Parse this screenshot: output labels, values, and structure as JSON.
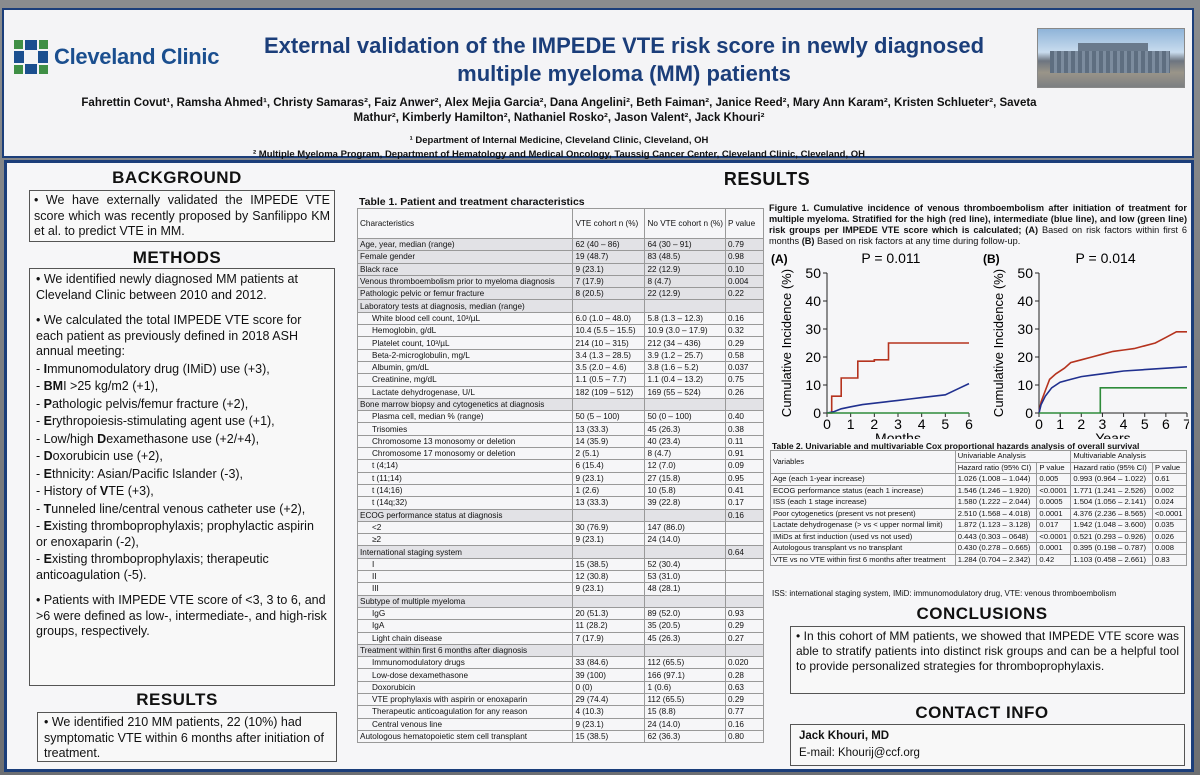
{
  "header": {
    "logo_text": "Cleveland Clinic",
    "title": "External validation of the IMPEDE VTE risk score in newly diagnosed multiple myeloma (MM) patients",
    "authors": "Fahrettin Covut¹, Ramsha Ahmed¹, Christy Samaras², Faiz Anwer², Alex Mejia Garcia², Dana Angelini², Beth Faiman², Janice Reed², Mary Ann Karam², Kristen Schlueter², Saveta Mathur², Kimberly Hamilton², Nathaniel Rosko², Jason Valent², Jack Khouri²",
    "affiliation1": "¹ Department of Internal Medicine, Cleveland Clinic, Cleveland, OH",
    "affiliation2": "² Multiple Myeloma Program, Department of Hematology and Medical Oncology, Taussig Cancer Center, Cleveland Clinic, Cleveland, OH"
  },
  "background": {
    "heading": "BACKGROUND",
    "text": "• We have externally validated the IMPEDE VTE score which was recently proposed by Sanfilippo KM et al. to predict VTE in MM."
  },
  "methods": {
    "heading": "METHODS",
    "p1": "• We identified newly diagnosed MM patients at Cleveland Clinic between 2010 and 2012.",
    "p2": "• We calculated the total IMPEDE VTE score for each patient as previously defined in 2018 ASH annual meeting:",
    "items": [
      {
        "l": "I",
        "t": "mmunomodulatory drug (IMiD) use (+3),"
      },
      {
        "l": "BM",
        "t": "I >25 kg/m2 (+1),"
      },
      {
        "l": "P",
        "t": "athologic pelvis/femur fracture (+2),"
      },
      {
        "l": "E",
        "t": "rythropoiesis-stimulating agent use (+1),"
      },
      {
        "l": "",
        "t": "Low/high ",
        "l2": "D",
        "t2": "examethasone use (+2/+4),"
      },
      {
        "l": "D",
        "t": "oxorubicin use (+2),"
      },
      {
        "l": "E",
        "t": "thnicity: Asian/Pacific Islander (-3),"
      },
      {
        "l": "",
        "t": "History of ",
        "l2": "V",
        "t2": "TE (+3),"
      },
      {
        "l": "T",
        "t": "unneled line/central venous catheter use (+2),"
      },
      {
        "l": "E",
        "t": "xisting thromboprophylaxis; prophylactic aspirin or enoxaparin (-2),"
      },
      {
        "l": "E",
        "t": "xisting thromboprophylaxis; therapeutic anticoagulation (-5)."
      }
    ],
    "p3": "• Patients with IMPEDE VTE score of <3, 3 to 6, and >6 were defined as low-, intermediate-, and high-risk groups, respectively."
  },
  "results_left": {
    "heading": "RESULTS",
    "text": "• We identified 210 MM patients, 22 (10%) had symptomatic VTE within 6 months after initiation of treatment."
  },
  "results_heading": "RESULTS",
  "table1": {
    "title": "Table 1. Patient and treatment characteristics",
    "headers": [
      "Characteristics",
      "VTE cohort n  (%)",
      "No VTE cohort n  (%)",
      "P value"
    ],
    "rows": [
      {
        "c": "Age, year, median (range)",
        "a": "62 (40 – 86)",
        "b": "64 (30 – 91)",
        "p": "0.79",
        "s": true
      },
      {
        "c": "Female gender",
        "a": "19 (48.7)",
        "b": "83 (48.5)",
        "p": "0.98",
        "s": true
      },
      {
        "c": "Black race",
        "a": "9 (23.1)",
        "b": "22 (12.9)",
        "p": "0.10",
        "s": true
      },
      {
        "c": "Venous thromboembolism prior to myeloma diagnosis",
        "a": "7 (17.9)",
        "b": "8 (4.7)",
        "p": "0.004",
        "s": true
      },
      {
        "c": "Pathologic pelvic or femur fracture",
        "a": "8 (20.5)",
        "b": "22 (12.9)",
        "p": "0.22",
        "s": true
      },
      {
        "c": "Laboratory tests at diagnosis, median (range)",
        "a": "",
        "b": "",
        "p": ""
      },
      {
        "c": "White blood cell count, 10³/µL",
        "a": "6.0 (1.0 – 48.0)",
        "b": "5.8 (1.3 – 12.3)",
        "p": "0.16",
        "i": true
      },
      {
        "c": "Hemoglobin, g/dL",
        "a": "10.4 (5.5 – 15.5)",
        "b": "10.9 (3.0 – 17.9)",
        "p": "0.32",
        "i": true
      },
      {
        "c": "Platelet count, 10³/µL",
        "a": "214 (10 – 315)",
        "b": "212 (34 – 436)",
        "p": "0.29",
        "i": true
      },
      {
        "c": "Beta-2-microglobulin, mg/L",
        "a": "3.4 (1.3 – 28.5)",
        "b": "3.9 (1.2 – 25.7)",
        "p": "0.58",
        "i": true
      },
      {
        "c": "Albumin, gm/dL",
        "a": "3.5 (2.0 – 4.6)",
        "b": "3.8 (1.6 – 5.2)",
        "p": "0.037",
        "i": true
      },
      {
        "c": "Creatinine, mg/dL",
        "a": "1.1 (0.5 – 7.7)",
        "b": "1.1 (0.4 – 13.2)",
        "p": "0.75",
        "i": true
      },
      {
        "c": "Lactate dehydrogenase, U/L",
        "a": "182 (109 – 512)",
        "b": "169 (55 – 524)",
        "p": "0.26",
        "i": true
      },
      {
        "c": "Bone marrow biopsy and cytogenetics at diagnosis",
        "a": "",
        "b": "",
        "p": ""
      },
      {
        "c": "Plasma cell, median % (range)",
        "a": "50 (5 – 100)",
        "b": "50 (0 – 100)",
        "p": "0.40",
        "i": true
      },
      {
        "c": "Trisomies",
        "a": "13 (33.3)",
        "b": "45 (26.3)",
        "p": "0.38",
        "i": true
      },
      {
        "c": "Chromosome 13 monosomy or deletion",
        "a": "14 (35.9)",
        "b": "40 (23.4)",
        "p": "0.11",
        "i": true
      },
      {
        "c": "Chromosome 17 monosomy or deletion",
        "a": "2 (5.1)",
        "b": "8 (4.7)",
        "p": "0.91",
        "i": true
      },
      {
        "c": "t (4;14)",
        "a": "6 (15.4)",
        "b": "12 (7.0)",
        "p": "0.09",
        "i": true
      },
      {
        "c": "t (11;14)",
        "a": "9 (23.1)",
        "b": "27 (15.8)",
        "p": "0.95",
        "i": true
      },
      {
        "c": "t (14;16)",
        "a": "1 (2.6)",
        "b": "10 (5.8)",
        "p": "0.41",
        "i": true
      },
      {
        "c": "t (14q;32)",
        "a": "13 (33.3)",
        "b": "39 (22.8)",
        "p": "0.17",
        "i": true
      },
      {
        "c": "ECOG performance status at diagnosis",
        "a": "",
        "b": "",
        "p": "0.16"
      },
      {
        "c": "<2",
        "a": "30 (76.9)",
        "b": "147 (86.0)",
        "p": "",
        "i": true
      },
      {
        "c": "≥2",
        "a": "9 (23.1)",
        "b": "24 (14.0)",
        "p": "",
        "i": true
      },
      {
        "c": "International staging system",
        "a": "",
        "b": "",
        "p": "0.64"
      },
      {
        "c": "I",
        "a": "15 (38.5)",
        "b": "52 (30.4)",
        "p": "",
        "i": true
      },
      {
        "c": "II",
        "a": "12 (30.8)",
        "b": "53 (31.0)",
        "p": "",
        "i": true
      },
      {
        "c": "III",
        "a": "9 (23.1)",
        "b": "48 (28.1)",
        "p": "",
        "i": true
      },
      {
        "c": "Subtype of multiple myeloma",
        "a": "",
        "b": "",
        "p": ""
      },
      {
        "c": "IgG",
        "a": "20 (51.3)",
        "b": "89 (52.0)",
        "p": "0.93",
        "i": true
      },
      {
        "c": "IgA",
        "a": "11 (28.2)",
        "b": "35 (20.5)",
        "p": "0.29",
        "i": true
      },
      {
        "c": "Light chain disease",
        "a": "7 (17.9)",
        "b": "45 (26.3)",
        "p": "0.27",
        "i": true
      },
      {
        "c": "Treatment within first 6 months after diagnosis",
        "a": "",
        "b": "",
        "p": ""
      },
      {
        "c": "Immunomodulatory drugs",
        "a": "33 (84.6)",
        "b": "112 (65.5)",
        "p": "0.020",
        "i": true
      },
      {
        "c": "Low-dose dexamethasone",
        "a": "39 (100)",
        "b": "166 (97.1)",
        "p": "0.28",
        "i": true
      },
      {
        "c": "Doxorubicin",
        "a": "0 (0)",
        "b": "1 (0.6)",
        "p": "0.63",
        "i": true
      },
      {
        "c": "VTE prophylaxis with aspirin or enoxaparin",
        "a": "29 (74.4)",
        "b": "112 (65.5)",
        "p": "0.29",
        "i": true
      },
      {
        "c": "Therapeutic anticoagulation for any reason",
        "a": "4 (10.3)",
        "b": "15 (8.8)",
        "p": "0.77",
        "i": true
      },
      {
        "c": "Central venous line",
        "a": "9 (23.1)",
        "b": "24 (14.0)",
        "p": "0.16",
        "i": true
      },
      {
        "c": "Autologous hematopoietic stem cell transplant",
        "a": "15 (38.5)",
        "b": "62 (36.3)",
        "p": "0.80"
      }
    ]
  },
  "figure1": {
    "caption_bold": "Figure 1. Cumulative incidence of venous thromboembolism after initiation of treatment for multiple myeloma. Stratified for the high (red line), intermediate (blue line), and low (green line) risk groups per IMPEDE VTE score which is calculated; (A)",
    "caption_a": " Based on risk factors within first 6 months ",
    "caption_b_label": "(B)",
    "caption_b": " Based on risk factors at any time during follow-up."
  },
  "chart_data": [
    {
      "type": "line",
      "panel": "(A)",
      "annotation": "P = 0.011",
      "xlabel": "Months",
      "ylabel": "Cumulative Incidence (%)",
      "xlim": [
        0,
        6
      ],
      "ylim": [
        0,
        50
      ],
      "xticks": [
        "0",
        "1",
        "2",
        "3",
        "4",
        "5",
        "6"
      ],
      "yticks": [
        "0",
        "10",
        "20",
        "30",
        "40",
        "50"
      ],
      "series": [
        {
          "name": "high",
          "color": "#b5331e",
          "x": [
            0,
            0.2,
            0.2,
            0.6,
            0.6,
            1.3,
            1.3,
            2.0,
            2.0,
            2.6,
            2.6,
            6
          ],
          "y": [
            0,
            0,
            6,
            6,
            12.5,
            12.5,
            18.5,
            18.5,
            19,
            19,
            25,
            25
          ]
        },
        {
          "name": "intermediate",
          "color": "#20308f",
          "x": [
            0,
            0.3,
            0.6,
            1.0,
            1.5,
            2.0,
            2.5,
            3.0,
            3.5,
            4.0,
            4.5,
            5.0,
            5.5,
            6
          ],
          "y": [
            0,
            0.5,
            1.5,
            2.2,
            3.0,
            3.5,
            4.0,
            4.5,
            5.0,
            5.5,
            6.0,
            6.5,
            8.5,
            10.5
          ]
        },
        {
          "name": "low",
          "color": "#2e8b3a",
          "x": [
            0,
            6
          ],
          "y": [
            0,
            0
          ]
        }
      ]
    },
    {
      "type": "line",
      "panel": "(B)",
      "annotation": "P = 0.014",
      "xlabel": "Years",
      "ylabel": "Cumulative Incidence (%)",
      "xlim": [
        0,
        7
      ],
      "ylim": [
        0,
        50
      ],
      "xticks": [
        "0",
        "1",
        "2",
        "3",
        "4",
        "5",
        "6",
        "7"
      ],
      "yticks": [
        "0",
        "10",
        "20",
        "30",
        "40",
        "50"
      ],
      "series": [
        {
          "name": "high",
          "color": "#b5331e",
          "x": [
            0,
            0.1,
            0.3,
            0.5,
            0.8,
            1.2,
            1.5,
            2.0,
            2.5,
            3.0,
            3.5,
            4.0,
            4.5,
            5.0,
            5.5,
            6.0,
            6.5,
            7
          ],
          "y": [
            0,
            4,
            8,
            12,
            14,
            16,
            18,
            19,
            20,
            21,
            22,
            22.5,
            23,
            24,
            25,
            27,
            29,
            29
          ]
        },
        {
          "name": "intermediate",
          "color": "#20308f",
          "x": [
            0,
            0.1,
            0.3,
            0.6,
            1.0,
            1.5,
            2.0,
            2.5,
            3.0,
            3.5,
            4.0,
            5.0,
            6.0,
            7
          ],
          "y": [
            0,
            3,
            6,
            9,
            11,
            12,
            13,
            13.5,
            14,
            14.5,
            15,
            15.5,
            16,
            16.5
          ]
        },
        {
          "name": "low",
          "color": "#2e8b3a",
          "x": [
            0,
            2.9,
            2.9,
            7
          ],
          "y": [
            0,
            0,
            9,
            9
          ]
        }
      ]
    }
  ],
  "table2": {
    "title": "Table 2. Univariable and multivariable Cox proportional hazards analysis of overall survival",
    "group_headers": [
      "Variables",
      "Univariable Analysis",
      "Multivariable Analysis"
    ],
    "sub_headers": [
      "Hazard ratio (95% CI)",
      "P value",
      "Hazard ratio (95% CI)",
      "P value"
    ],
    "rows": [
      {
        "v": "Age (each 1-year increase)",
        "u": "1.026 (1.008 – 1.044)",
        "up": "0.005",
        "m": "0.993 (0.964 – 1.022)",
        "mp": "0.61"
      },
      {
        "v": "ECOG performance status (each 1 increase)",
        "u": "1.546 (1.246 – 1.920)",
        "up": "<0.0001",
        "m": "1.771 (1.241 – 2.526)",
        "mp": "0.002"
      },
      {
        "v": "ISS (each 1 stage increase)",
        "u": "1.580 (1.222 – 2.044)",
        "up": "0.0005",
        "m": "1.504 (1.056 – 2.141)",
        "mp": "0.024"
      },
      {
        "v": "Poor cytogenetics (present vs not present)",
        "u": "2.510 (1.568 – 4.018)",
        "up": "0.0001",
        "m": "4.376 (2.236 – 8.565)",
        "mp": "<0.0001"
      },
      {
        "v": "Lactate dehydrogenase (> vs < upper normal limit)",
        "u": "1.872 (1.123 – 3.128)",
        "up": "0.017",
        "m": "1.942 (1.048 – 3.600)",
        "mp": "0.035"
      },
      {
        "v": "IMiDs at first induction (used vs not used)",
        "u": "0.443 (0.303 – 0648)",
        "up": "<0.0001",
        "m": "0.521 (0.293 – 0.926)",
        "mp": "0.026"
      },
      {
        "v": "Autologous transplant vs no transplant",
        "u": "0.430 (0.278 – 0.665)",
        "up": "0.0001",
        "m": "0.395 (0.198 – 0.787)",
        "mp": "0.008"
      },
      {
        "v": "VTE vs no VTE within first 6 months after treatment",
        "u": "1.284 (0.704 – 2.342)",
        "up": "0.42",
        "m": "1.103 (0.458 – 2.661)",
        "mp": "0.83"
      }
    ],
    "note": "ISS: international staging system, IMiD: immunomodulatory drug, VTE: venous thromboembolism"
  },
  "conclusions": {
    "heading": "CONCLUSIONS",
    "text": "• In this cohort of MM patients, we showed that IMPEDE VTE score was able to stratify patients into distinct risk groups and can be a helpful tool to provide personalized strategies for thromboprophylaxis."
  },
  "contact": {
    "heading": "CONTACT INFO",
    "name": "Jack Khouri, MD",
    "email": "E-mail: Khourij@ccf.org"
  }
}
